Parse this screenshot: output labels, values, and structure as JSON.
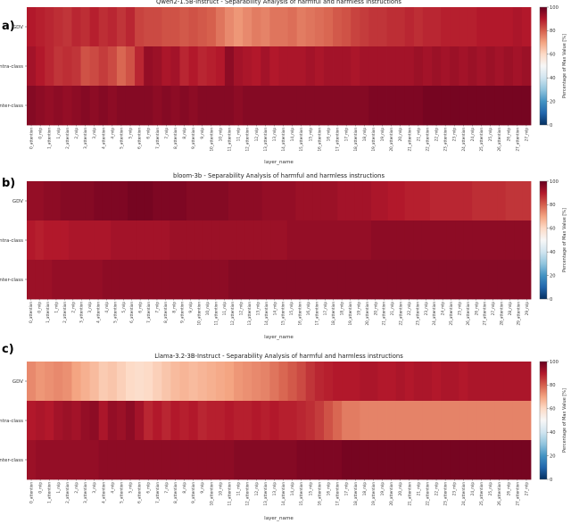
{
  "figure": {
    "title": ""
  },
  "chart_data": [
    {
      "type": "heatmap",
      "panel_label": "a)",
      "title": "Qwen2-1.5B-Instruct - Separability Analysis of harmful and harmless instructions",
      "xlabel": "layer_name",
      "ylabel": "",
      "rows": [
        "GDV",
        "Intra-class",
        "Inter-class"
      ],
      "x_tick_labels": [
        "0_attention",
        "0_mlp",
        "1_attention",
        "1_mlp",
        "2_attention",
        "2_mlp",
        "3_attention",
        "3_mlp",
        "4_attention",
        "4_mlp",
        "5_attention",
        "5_mlp",
        "6_attention",
        "6_mlp",
        "7_attention",
        "7_mlp",
        "8_attention",
        "8_mlp",
        "9_attention",
        "9_mlp",
        "10_attention",
        "10_mlp",
        "11_attention",
        "11_mlp",
        "12_attention",
        "12_mlp",
        "13_attention",
        "13_mlp",
        "14_attention",
        "14_mlp",
        "15_attention",
        "15_mlp",
        "16_attention",
        "16_mlp",
        "17_attention",
        "17_mlp",
        "18_attention",
        "18_mlp",
        "19_attention",
        "19_mlp",
        "20_attention",
        "20_mlp",
        "21_attention",
        "21_mlp",
        "22_attention",
        "22_mlp",
        "23_attention",
        "23_mlp",
        "24_attention",
        "24_mlp",
        "25_attention",
        "25_mlp",
        "26_attention",
        "26_mlp",
        "27_attention",
        "27_mlp"
      ],
      "x_tick_every": 1,
      "colorbar": {
        "label": "Percentage of Max Value [%]",
        "range": [
          0,
          100
        ],
        "ticks": [
          0,
          20,
          40,
          60,
          80,
          100
        ],
        "colormap": "RdBu_r"
      },
      "values": [
        [
          90,
          89,
          88,
          87,
          86,
          88,
          87,
          89,
          87,
          88,
          86,
          88,
          84,
          83,
          83,
          82,
          82,
          81,
          82,
          81,
          80,
          77,
          74,
          72,
          74,
          76,
          75,
          77,
          77,
          78,
          76,
          77,
          78,
          79,
          81,
          82,
          84,
          85,
          86,
          86,
          87,
          87,
          88,
          87,
          88,
          88,
          89,
          89,
          89,
          89,
          90,
          90,
          90,
          90,
          91,
          90
        ],
        [
          92,
          90,
          88,
          86,
          87,
          86,
          82,
          83,
          85,
          83,
          79,
          82,
          88,
          94,
          93,
          91,
          92,
          88,
          90,
          88,
          89,
          90,
          95,
          92,
          91,
          90,
          92,
          90,
          91,
          91,
          91,
          92,
          91,
          92,
          92,
          92,
          91,
          92,
          92,
          92,
          92,
          92,
          92,
          93,
          92,
          93,
          92,
          93,
          92,
          93,
          92,
          93,
          92,
          93,
          92,
          93
        ],
        [
          96,
          95,
          94,
          95,
          94,
          95,
          96,
          95,
          96,
          95,
          96,
          96,
          96,
          96,
          95,
          96,
          95,
          96,
          95,
          96,
          96,
          96,
          96,
          95,
          96,
          96,
          96,
          96,
          96,
          96,
          96,
          96,
          96,
          96,
          96,
          96,
          96,
          96,
          97,
          97,
          97,
          97,
          97,
          97,
          98,
          98,
          98,
          98,
          98,
          98,
          98,
          98,
          98,
          98,
          98,
          98
        ]
      ]
    },
    {
      "type": "heatmap",
      "panel_label": "b)",
      "title": "bloom-3b - Separability Analysis of harmful and harmless instructions",
      "xlabel": "layer_name",
      "ylabel": "",
      "rows": [
        "GDV",
        "Intra-class",
        "Inter-class"
      ],
      "x_tick_labels": [
        "0_attention",
        "0_mlp",
        "1_attention",
        "1_mlp",
        "2_attention",
        "2_mlp",
        "3_attention",
        "3_mlp",
        "4_attention",
        "4_mlp",
        "5_attention",
        "5_mlp",
        "6_attention",
        "6_mlp",
        "7_attention",
        "7_mlp",
        "8_attention",
        "8_mlp",
        "9_attention",
        "9_mlp",
        "10_attention",
        "10_mlp",
        "11_attention",
        "11_mlp",
        "12_attention",
        "12_mlp",
        "13_attention",
        "13_mlp",
        "14_attention",
        "14_mlp",
        "15_attention",
        "15_mlp",
        "16_attention",
        "16_mlp",
        "17_attention",
        "17_mlp",
        "18_attention",
        "18_mlp",
        "19_attention",
        "19_mlp",
        "20_attention",
        "20_mlp",
        "21_attention",
        "21_mlp",
        "22_attention",
        "22_mlp",
        "23_attention",
        "23_mlp",
        "24_attention",
        "24_mlp",
        "25_attention",
        "25_mlp",
        "26_attention",
        "26_mlp",
        "27_attention",
        "27_mlp",
        "28_attention",
        "28_mlp",
        "29_attention",
        "29_mlp"
      ],
      "x_tick_every": 1,
      "colorbar": {
        "label": "Percentage of Max Value [%]",
        "range": [
          0,
          100
        ],
        "ticks": [
          0,
          20,
          40,
          60,
          80,
          100
        ],
        "colormap": "RdBu_r"
      },
      "values": [
        [
          94,
          94,
          95,
          95,
          96,
          96,
          96,
          96,
          97,
          97,
          97,
          97,
          98,
          98,
          98,
          97,
          97,
          97,
          97,
          96,
          96,
          96,
          96,
          96,
          95,
          95,
          95,
          95,
          94,
          94,
          94,
          94,
          93,
          93,
          93,
          93,
          93,
          92,
          92,
          92,
          92,
          91,
          91,
          90,
          90,
          89,
          89,
          89,
          88,
          88,
          88,
          88,
          88,
          87,
          87,
          87,
          87,
          86,
          86,
          86
        ],
        [
          90,
          89,
          90,
          90,
          90,
          91,
          91,
          91,
          91,
          91,
          92,
          92,
          92,
          92,
          92,
          92,
          92,
          93,
          93,
          93,
          93,
          93,
          93,
          93,
          93,
          93,
          93,
          93,
          93,
          93,
          93,
          94,
          94,
          94,
          94,
          94,
          94,
          94,
          94,
          94,
          94,
          95,
          95,
          95,
          95,
          95,
          95,
          95,
          95,
          95,
          95,
          95,
          95,
          95,
          95,
          95,
          95,
          95,
          95,
          95
        ],
        [
          93,
          93,
          93,
          94,
          94,
          94,
          94,
          94,
          94,
          95,
          95,
          95,
          95,
          95,
          95,
          95,
          95,
          95,
          95,
          95,
          95,
          95,
          95,
          95,
          96,
          96,
          96,
          96,
          96,
          96,
          96,
          96,
          96,
          96,
          96,
          96,
          96,
          96,
          96,
          96,
          96,
          96,
          96,
          96,
          96,
          96,
          96,
          96,
          96,
          96,
          96,
          96,
          96,
          96,
          96,
          96,
          96,
          96,
          96,
          96
        ]
      ]
    },
    {
      "type": "heatmap",
      "panel_label": "c)",
      "title": "Llama-3.2-3B-Instruct - Separability Analysis of harmful and harmless instructions",
      "xlabel": "layer_name",
      "ylabel": "",
      "rows": [
        "GDV",
        "Intra-class",
        "Inter-class"
      ],
      "x_tick_labels": [
        "0_attention",
        "0_mlp",
        "1_attention",
        "1_mlp",
        "2_attention",
        "2_mlp",
        "3_attention",
        "3_mlp",
        "4_attention",
        "4_mlp",
        "5_attention",
        "5_mlp",
        "6_attention",
        "6_mlp",
        "7_attention",
        "7_mlp",
        "8_attention",
        "8_mlp",
        "9_attention",
        "9_mlp",
        "10_attention",
        "10_mlp",
        "11_attention",
        "11_mlp",
        "12_attention",
        "12_mlp",
        "13_attention",
        "13_mlp",
        "14_attention",
        "14_mlp",
        "15_attention",
        "15_mlp",
        "16_attention",
        "16_mlp",
        "17_attention",
        "17_mlp",
        "18_attention",
        "18_mlp",
        "19_attention",
        "19_mlp",
        "20_attention",
        "20_mlp",
        "21_attention",
        "21_mlp",
        "22_attention",
        "22_mlp",
        "23_attention",
        "23_mlp",
        "24_attention",
        "24_mlp",
        "25_attention",
        "25_mlp",
        "26_attention",
        "26_mlp",
        "27_attention",
        "27_mlp"
      ],
      "x_tick_every": 1,
      "colorbar": {
        "label": "Percentage of Max Value [%]",
        "range": [
          0,
          100
        ],
        "ticks": [
          0,
          20,
          40,
          60,
          80,
          100
        ],
        "colormap": "RdBu_r"
      },
      "values": [
        [
          74,
          72,
          73,
          74,
          73,
          70,
          68,
          66,
          63,
          64,
          62,
          60,
          59,
          60,
          62,
          64,
          66,
          67,
          66,
          67,
          68,
          69,
          70,
          72,
          73,
          74,
          75,
          77,
          79,
          81,
          83,
          86,
          88,
          89,
          90,
          90,
          90,
          91,
          91,
          90,
          90,
          91,
          90,
          91,
          91,
          90,
          91,
          91,
          90,
          91,
          91,
          91,
          91,
          91,
          91,
          91
        ],
        [
          90,
          91,
          90,
          92,
          93,
          92,
          94,
          95,
          91,
          94,
          93,
          95,
          92,
          88,
          90,
          88,
          90,
          89,
          90,
          88,
          89,
          89,
          90,
          89,
          89,
          90,
          89,
          90,
          89,
          89,
          88,
          87,
          85,
          82,
          79,
          76,
          76,
          75,
          75,
          75,
          75,
          75,
          75,
          75,
          75,
          75,
          75,
          75,
          75,
          75,
          75,
          75,
          75,
          75,
          75,
          75
        ],
        [
          93,
          94,
          94,
          94,
          94,
          94,
          94,
          94,
          95,
          95,
          95,
          95,
          95,
          95,
          95,
          95,
          95,
          95,
          95,
          95,
          95,
          95,
          95,
          96,
          96,
          96,
          96,
          96,
          96,
          96,
          97,
          97,
          97,
          97,
          97,
          98,
          98,
          98,
          98,
          98,
          98,
          98,
          98,
          98,
          98,
          98,
          98,
          98,
          98,
          98,
          98,
          98,
          98,
          98,
          98,
          98
        ]
      ]
    }
  ]
}
